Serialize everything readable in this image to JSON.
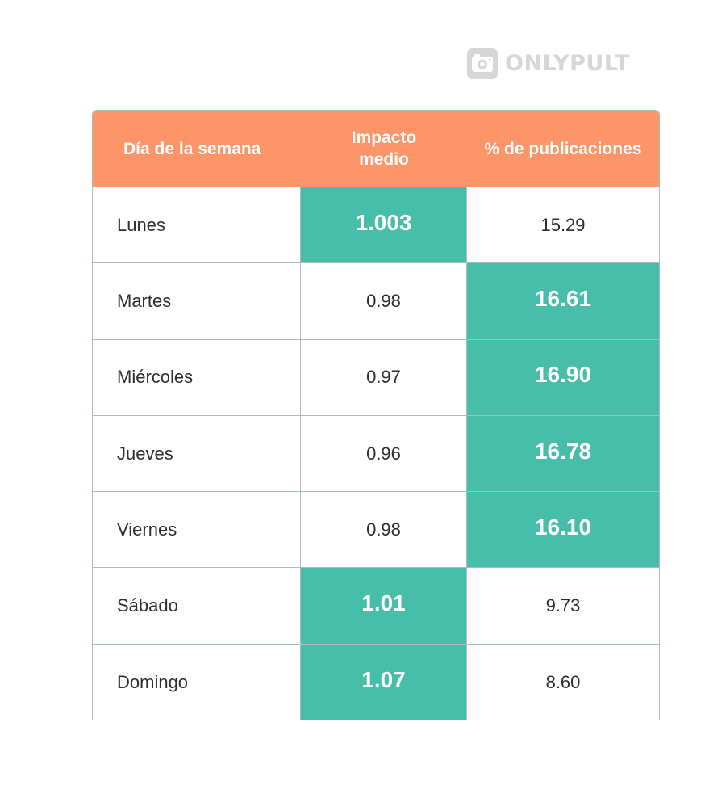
{
  "brand": {
    "name": "ONLYPULT",
    "icon": "camera-icon",
    "color": "#d6d6d6"
  },
  "colors": {
    "header_bg": "#fe9568",
    "highlight_bg": "#47bea9",
    "border": "#a9bdbd"
  },
  "chart_data": {
    "type": "table",
    "columns": [
      "Día de la semana",
      "Impacto medio",
      "% de publicaciones"
    ],
    "header_lines": [
      [
        "Día de la semana"
      ],
      [
        "Impacto",
        "medio"
      ],
      [
        "% de publicaciones"
      ]
    ],
    "rows": [
      {
        "day": "Lunes",
        "impact": "1.003",
        "publications": "15.29",
        "highlight": [
          "impact"
        ]
      },
      {
        "day": "Martes",
        "impact": "0.98",
        "publications": "16.61",
        "highlight": [
          "publications"
        ]
      },
      {
        "day": "Miércoles",
        "impact": "0.97",
        "publications": "16.90",
        "highlight": [
          "publications"
        ]
      },
      {
        "day": "Jueves",
        "impact": "0.96",
        "publications": "16.78",
        "highlight": [
          "publications"
        ]
      },
      {
        "day": "Viernes",
        "impact": "0.98",
        "publications": "16.10",
        "highlight": [
          "publications"
        ]
      },
      {
        "day": "Sábado",
        "impact": "1.01",
        "publications": "9.73",
        "highlight": [
          "impact"
        ]
      },
      {
        "day": "Domingo",
        "impact": "1.07",
        "publications": "8.60",
        "highlight": [
          "impact"
        ]
      }
    ]
  }
}
